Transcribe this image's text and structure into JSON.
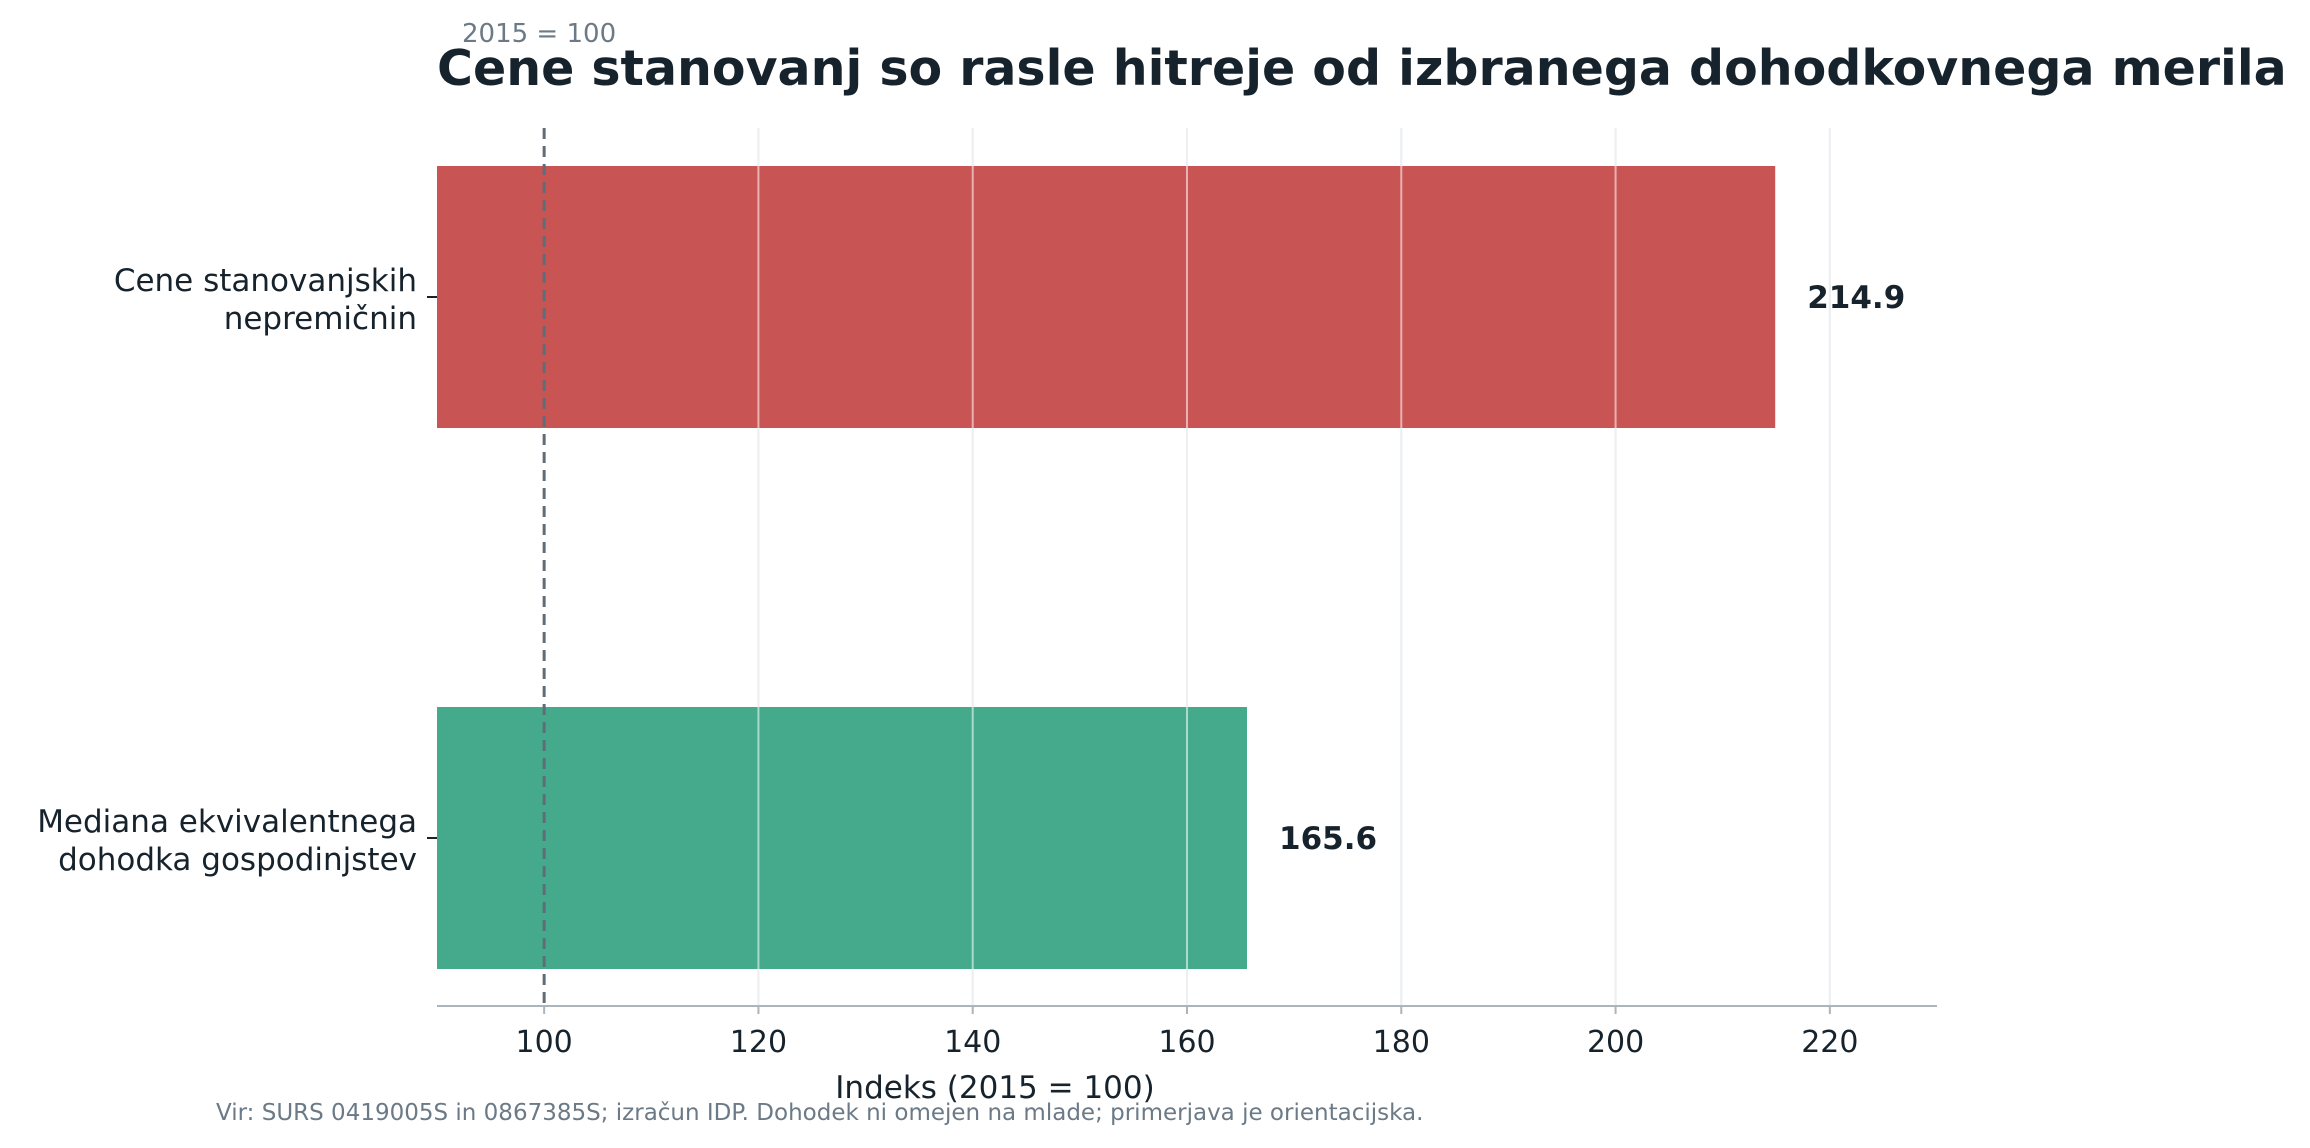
{
  "chart_data": {
    "type": "bar",
    "orientation": "horizontal",
    "subtitle": "2015 = 100",
    "title": "Cene stanovanj so rasle hitreje od izbranega dohodkovnega merila",
    "categories": [
      [
        "Cene stanovanjskih",
        "nepremičnin"
      ],
      [
        "Mediana ekvivalentnega",
        "dohodka gospodinjstev"
      ]
    ],
    "values": [
      214.9,
      165.6
    ],
    "value_labels": [
      "214.9",
      "165.6"
    ],
    "bar_colors": [
      "#c95454",
      "#45aa8b"
    ],
    "xlabel": "Indeks (2015 = 100)",
    "ylabel": "",
    "xlim": [
      90,
      230
    ],
    "xticks": [
      100,
      120,
      140,
      160,
      180,
      200,
      220
    ],
    "xtick_labels": [
      "100",
      "120",
      "140",
      "160",
      "180",
      "200",
      "220"
    ],
    "reference_line": 100,
    "grid": "vertical",
    "source": "Vir: SURS 0419005S in 0867385S; izračun IDP. Dohodek ni omejen na mlade; primerjava je orientacijska."
  },
  "colors": {
    "grid": "#d5dde2",
    "reference_line": "#5f6d79",
    "axis": "#aab5bd"
  }
}
